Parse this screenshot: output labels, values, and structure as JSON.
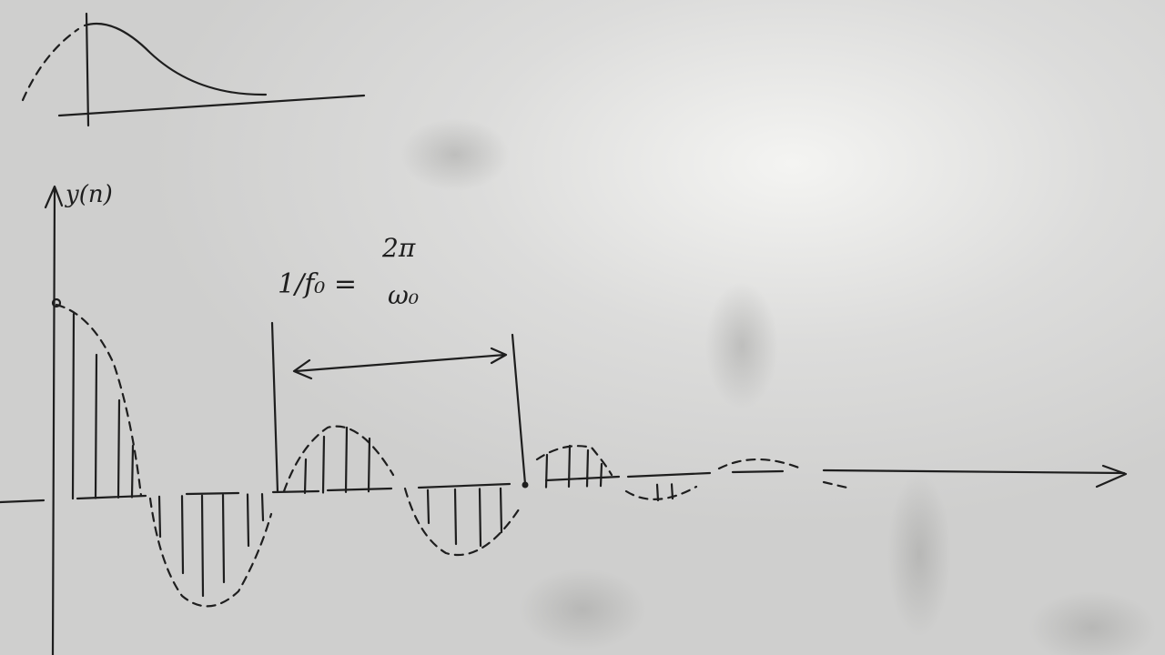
{
  "annotations": {
    "y_axis": "y(n)",
    "period_left": "1/f₀ =",
    "period_numerator": "2π",
    "period_denominator": "ω₀"
  }
}
